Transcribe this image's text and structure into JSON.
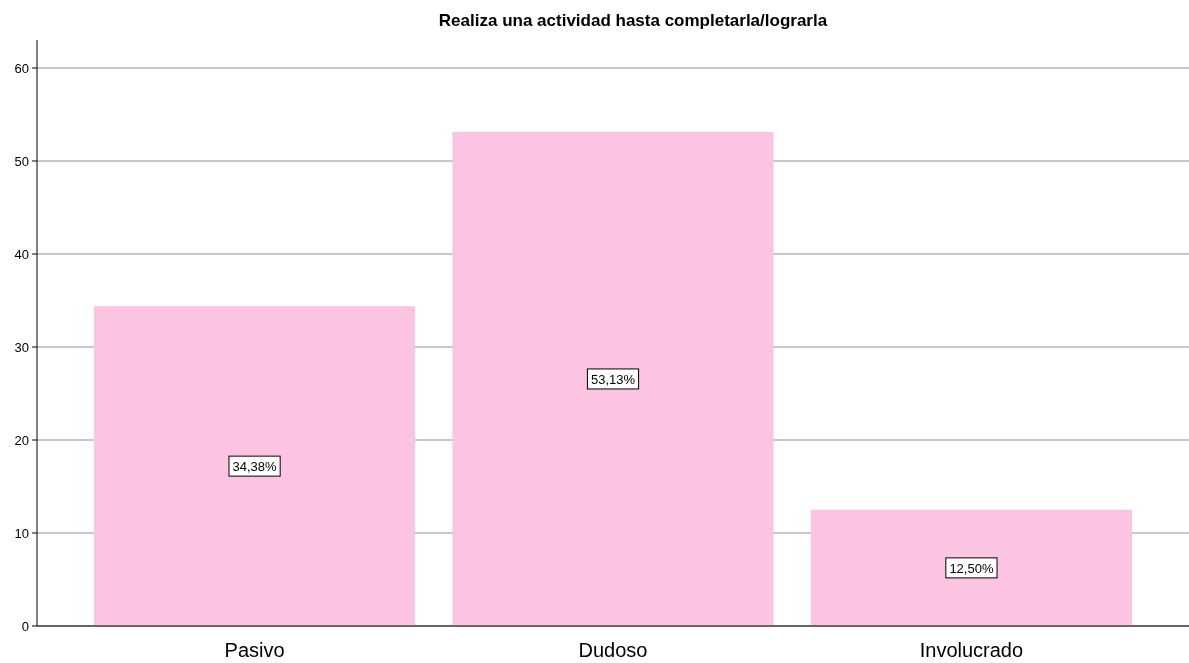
{
  "chart_data": {
    "type": "bar",
    "title": "Realiza una actividad hasta completarla/lograrla",
    "categories": [
      "Pasivo",
      "Dudoso",
      "Involucrado"
    ],
    "values": [
      34.38,
      53.13,
      12.5
    ],
    "value_labels": [
      "34,38%",
      "53,13%",
      "12,50%"
    ],
    "color": "#fcc4e2",
    "ylim": [
      0,
      60
    ],
    "yticks": [
      0,
      10,
      20,
      30,
      40,
      50,
      60
    ],
    "grid": "y"
  }
}
